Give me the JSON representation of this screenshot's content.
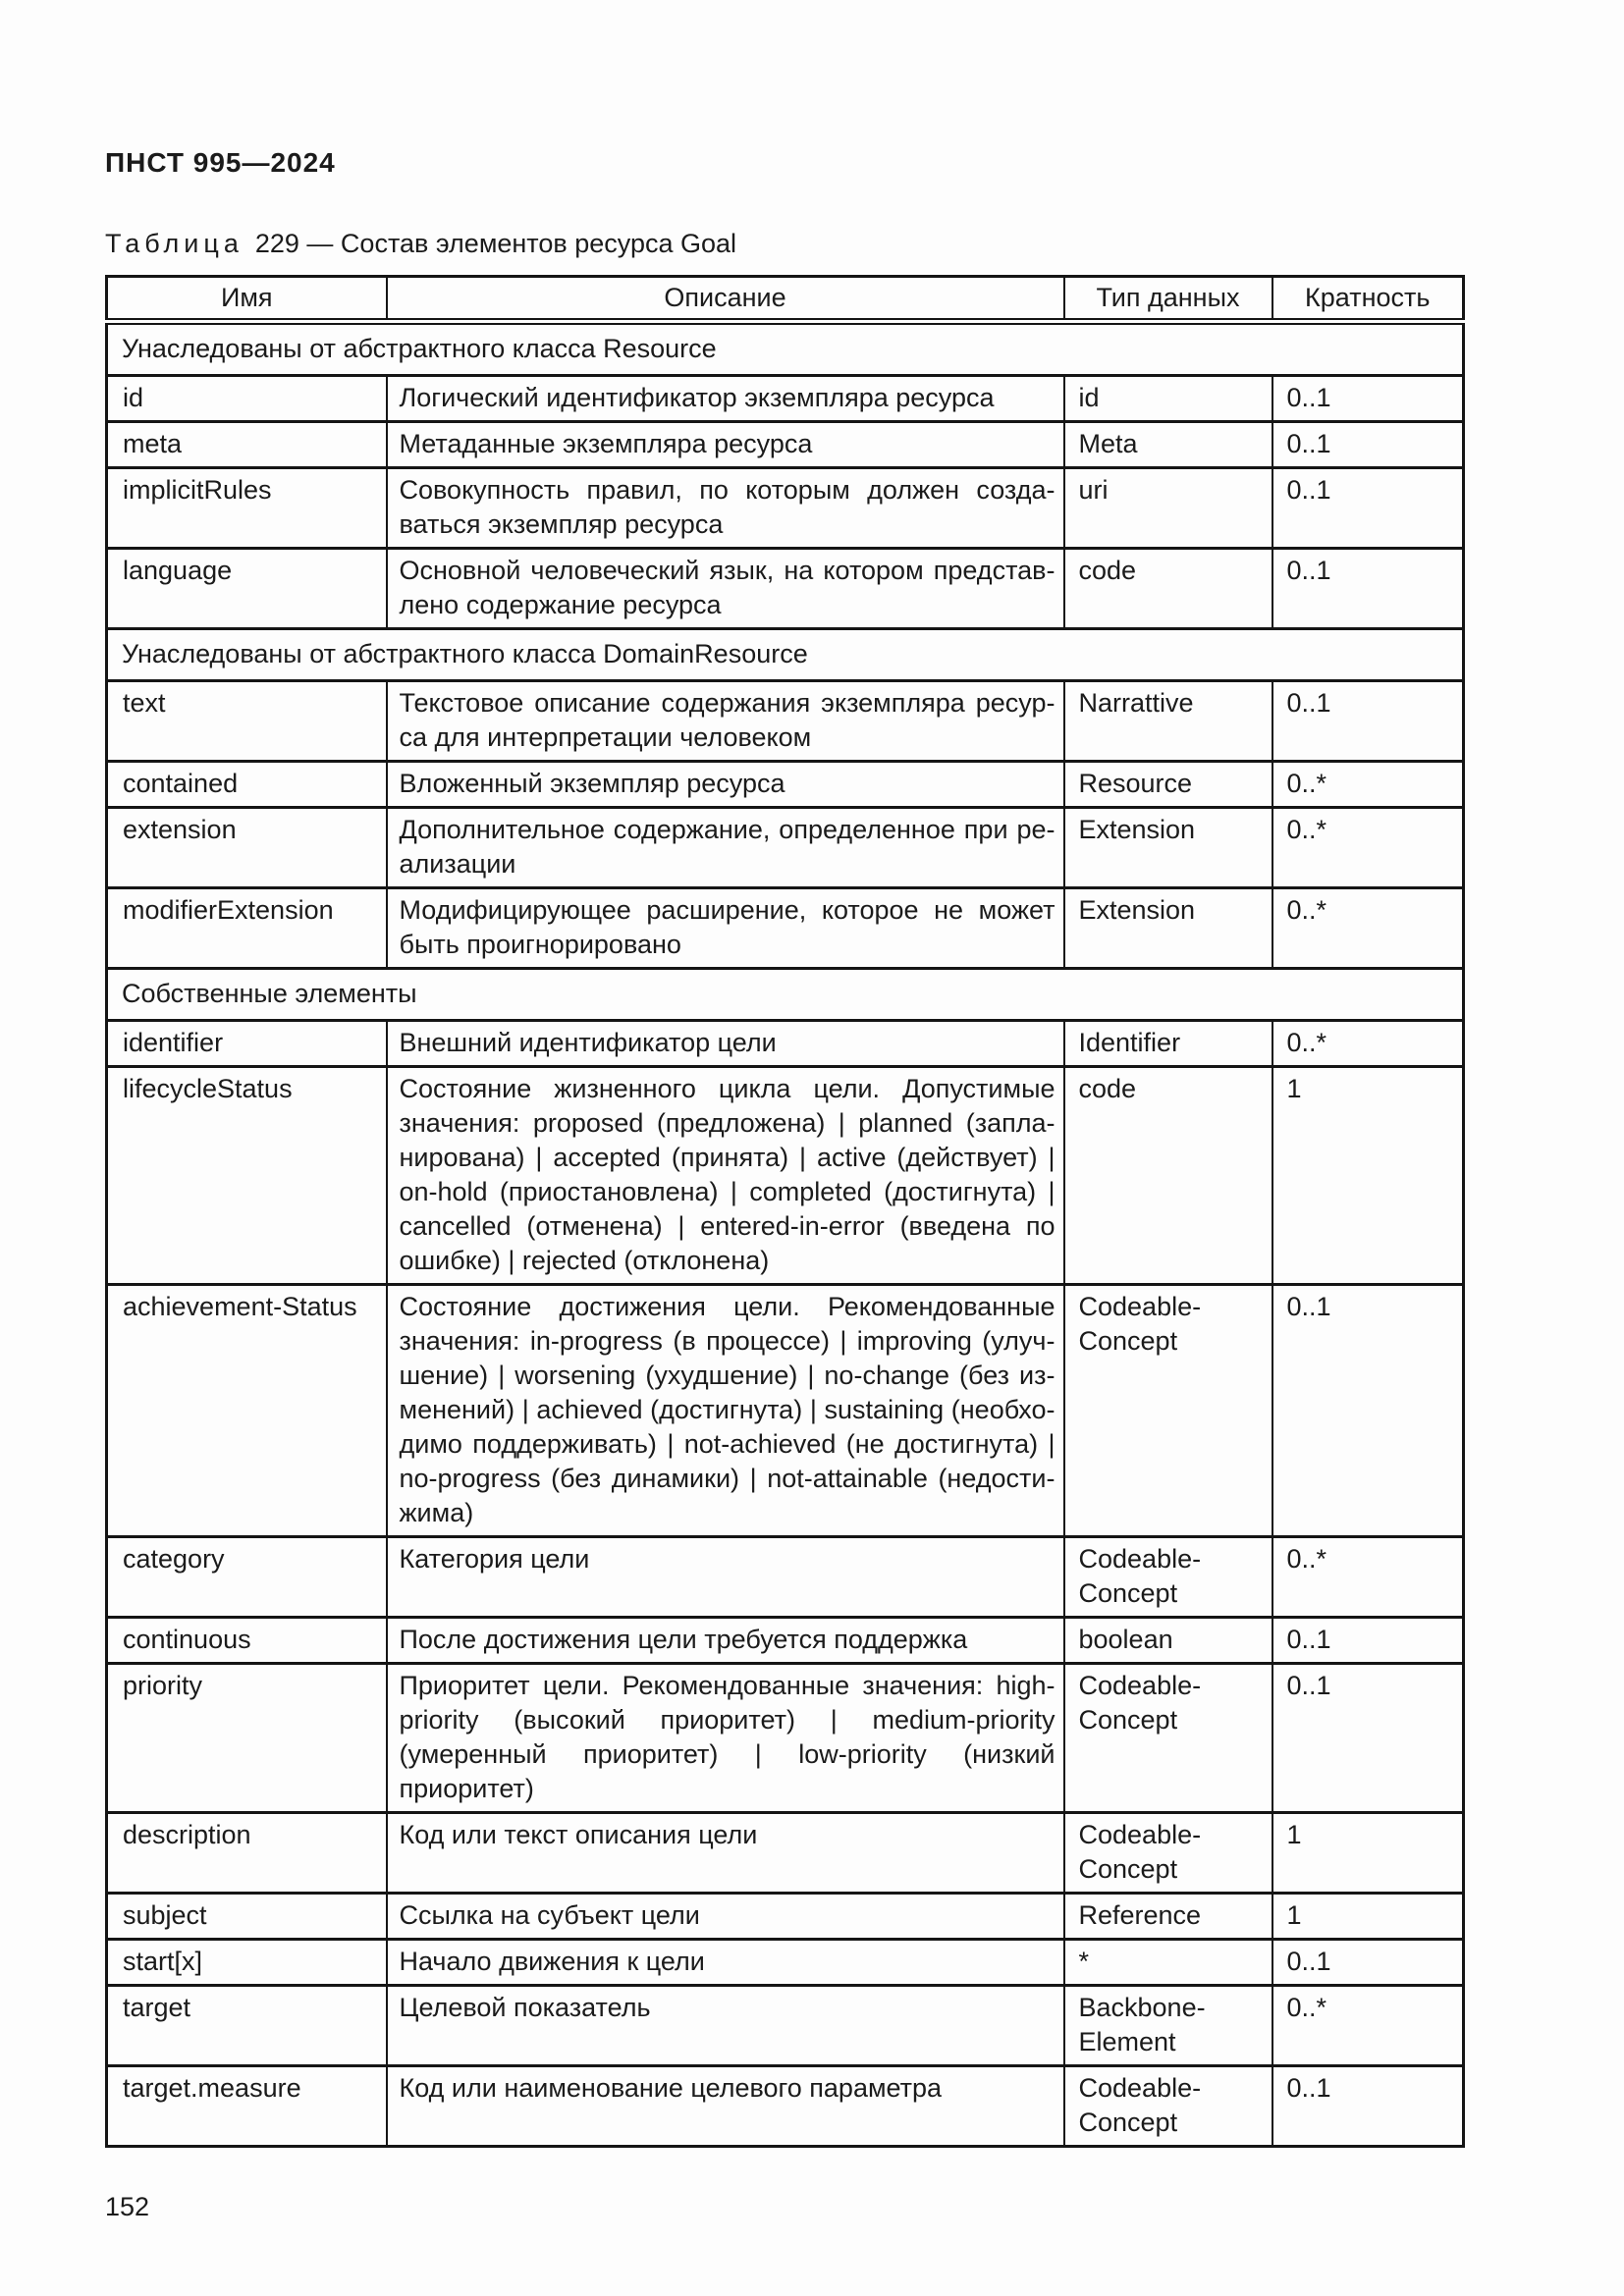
{
  "page": {
    "standard_code": "ПНСТ 995—2024",
    "page_number": "152"
  },
  "table_caption": {
    "label": "Таблица",
    "text": "229 — Состав элементов ресурса Goal"
  },
  "table": {
    "columns": [
      "Имя",
      "Описание",
      "Тип данных",
      "Кратность"
    ],
    "rows": [
      {
        "section": "Унаследованы от абстрактного класса Resource"
      },
      {
        "name": "id",
        "description": "Логический идентификатор экземпляра ресурса",
        "type": "id",
        "cardinality": "0..1"
      },
      {
        "name": "meta",
        "description": "Метаданные экземпляра ресурса",
        "type": "Meta",
        "cardinality": "0..1"
      },
      {
        "name": "implicitRules",
        "description": "Совокупность правил, по которым должен созда­ваться экземпляр ресурса",
        "type": "uri",
        "cardinality": "0..1"
      },
      {
        "name": "language",
        "description": "Основной человеческий язык, на котором представ­лено содержание ресурса",
        "type": "code",
        "cardinality": "0..1"
      },
      {
        "section": "Унаследованы от абстрактного класса DomainResource"
      },
      {
        "name": "text",
        "description": "Текстовое описание содержания экземпляра ресур­са для интерпретации человеком",
        "type": "Narrattive",
        "cardinality": "0..1"
      },
      {
        "name": "contained",
        "description": "Вложенный экземпляр ресурса",
        "type": "Resource",
        "cardinality": "0..*"
      },
      {
        "name": "extension",
        "description": "Дополнительное содержание, определенное при ре­ализации",
        "type": "Extension",
        "cardinality": "0..*"
      },
      {
        "name": "modifierExtension",
        "description": "Модифицирующее расширение, которое не может быть проигнорировано",
        "type": "Extension",
        "cardinality": "0..*"
      },
      {
        "section": "Собственные элементы"
      },
      {
        "name": "identifier",
        "description": "Внешний идентификатор цели",
        "type": "Identifier",
        "cardinality": "0..*"
      },
      {
        "name": "lifecycleStatus",
        "description": "Состояние жизненного цикла цели. Допустимые значения: proposed (предложена) | planned (запла­нирована) | accepted (принята) | active (действует) | on-hold (приостановлена) | completed (достигнута) | cancelled (отменена) | entered-in-error (введена по ошибке) | rejected (отклонена)",
        "type": "code",
        "cardinality": "1"
      },
      {
        "name": "achievement-Status",
        "description": "Состояние достижения цели. Рекомендованные значения: in-progress (в процессе) | improving (улуч­шение) | worsening (ухудшение) | no-change (без из­менений) | achieved (достигнута) | sustaining (необхо­димо поддерживать) | not-achieved (не достигнута) | no-progress (без динамики) | not-attainable (недости­жима)",
        "type": "Codeable-Concept",
        "cardinality": "0..1"
      },
      {
        "name": "category",
        "description": "Категория цели",
        "type": "Codeable-Concept",
        "cardinality": "0..*"
      },
      {
        "name": "continuous",
        "description": "После достижения цели требуется поддержка",
        "type": "boolean",
        "cardinality": "0..1"
      },
      {
        "name": "priority",
        "description": "Приоритет цели. Рекомендованные значения: high-priority (высокий приоритет) | medium-priority (умерен­ный приоритет) | low-priority (низкий приоритет)",
        "type": "Codeable-Concept",
        "cardinality": "0..1"
      },
      {
        "name": "description",
        "description": "Код или текст описания цели",
        "type": "Codeable-Concept",
        "cardinality": "1"
      },
      {
        "name": "subject",
        "description": "Ссылка на субъект цели",
        "type": "Reference",
        "cardinality": "1"
      },
      {
        "name": "start[x]",
        "description": "Начало движения к цели",
        "type": "*",
        "cardinality": "0..1"
      },
      {
        "name": "target",
        "description": "Целевой показатель",
        "type": "Backbone-Element",
        "cardinality": "0..*"
      },
      {
        "name": "target.measure",
        "description": "Код или наименование целевого параметра",
        "type": "Codeable-Concept",
        "cardinality": "0..1"
      }
    ]
  }
}
